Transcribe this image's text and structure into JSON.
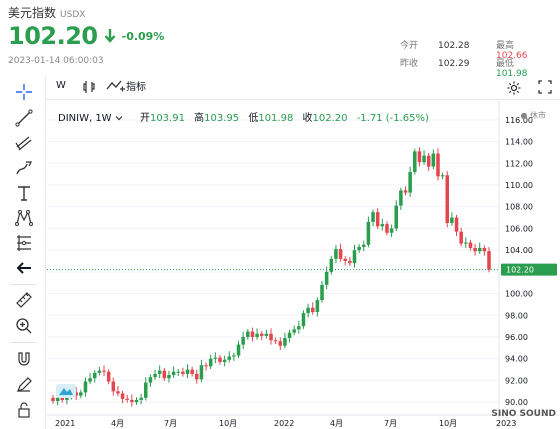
{
  "header": {
    "name": "美元指数",
    "symbol": "USDX",
    "price": "102.20",
    "change": "-0.09%",
    "datetime": "2023-01-14 06:00:03",
    "stats": [
      {
        "label": "今开",
        "value": "102.28"
      },
      {
        "label": "最高",
        "value": "102.66",
        "color": "#e4464f"
      },
      {
        "label": "昨收",
        "value": "102.29"
      },
      {
        "label": "最低",
        "value": "101.98",
        "color": "#2a9d4f"
      }
    ]
  },
  "toolbar": {
    "interval": "W",
    "indicators_label": "指标"
  },
  "legend": {
    "symbol": "DINIW, 1W",
    "open_label": "开",
    "open": "103.91",
    "high_label": "高",
    "high": "103.95",
    "low_label": "低",
    "low": "101.98",
    "close_label": "收",
    "close": "102.20",
    "change": "-1.71 (-1.65%)",
    "market_status": "● 休市"
  },
  "watermark": "SINO SOUND",
  "colors": {
    "up": "#2a9d4f",
    "down": "#e4464f",
    "price_line": "#2a9d4f"
  },
  "chart_data": {
    "type": "candlestick",
    "yaxis_ticks": [
      "116.00",
      "114.00",
      "112.00",
      "110.00",
      "108.00",
      "106.00",
      "104.00",
      "102.00",
      "100.00",
      "98.00",
      "96.00",
      "94.00",
      "92.00",
      "90.00"
    ],
    "xaxis_ticks": [
      "2021",
      "4月",
      "7月",
      "10月",
      "2022",
      "4月",
      "7月",
      "10月",
      "2023"
    ],
    "current_price_label": "102.20",
    "ylim": [
      89,
      117
    ],
    "weekly_close": [
      90.1,
      90.4,
      90.2,
      90.5,
      90.9,
      90.6,
      90.9,
      91.9,
      92.2,
      92.7,
      92.9,
      92.8,
      91.9,
      91.0,
      90.8,
      90.3,
      90.2,
      90.0,
      90.2,
      90.4,
      91.8,
      92.3,
      92.6,
      92.9,
      92.2,
      92.5,
      92.8,
      92.8,
      92.6,
      93.0,
      92.6,
      92.1,
      93.4,
      93.3,
      94.0,
      94.1,
      93.7,
      93.9,
      94.2,
      94.3,
      95.3,
      96.0,
      96.5,
      96.0,
      96.3,
      96.1,
      96.3,
      95.7,
      95.6,
      95.2,
      95.9,
      96.4,
      96.7,
      97.0,
      98.2,
      98.7,
      98.3,
      99.4,
      100.8,
      102.0,
      103.2,
      104.1,
      103.2,
      103.0,
      102.8,
      104.0,
      104.3,
      104.5,
      106.6,
      107.5,
      106.2,
      106.4,
      105.6,
      106.0,
      108.1,
      109.5,
      109.3,
      111.2,
      113.1,
      112.1,
      112.7,
      111.7,
      112.9,
      110.8,
      110.9,
      106.5,
      107.0,
      105.7,
      104.6,
      104.7,
      104.2,
      103.9,
      104.2,
      103.9,
      102.2
    ]
  }
}
